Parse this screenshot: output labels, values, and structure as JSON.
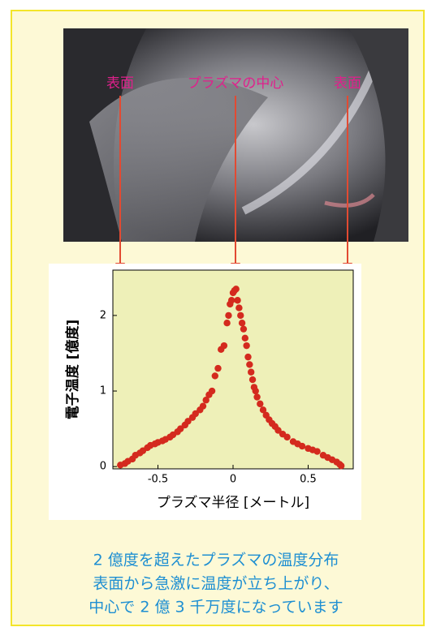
{
  "chart_data": {
    "type": "scatter",
    "annotations": [
      "表面",
      "プラズマの中心",
      "表面"
    ],
    "xlabel": "プラズマ半径 [メートル]",
    "ylabel": "電子温度 [億度]",
    "x": [
      -0.75,
      -0.72,
      -0.7,
      -0.67,
      -0.65,
      -0.62,
      -0.6,
      -0.57,
      -0.55,
      -0.52,
      -0.5,
      -0.47,
      -0.45,
      -0.42,
      -0.4,
      -0.37,
      -0.35,
      -0.32,
      -0.3,
      -0.27,
      -0.25,
      -0.22,
      -0.2,
      -0.18,
      -0.16,
      -0.14,
      -0.12,
      -0.1,
      -0.08,
      -0.06,
      -0.04,
      -0.03,
      -0.02,
      -0.01,
      0,
      0.01,
      0.02,
      0.03,
      0.04,
      0.05,
      0.06,
      0.07,
      0.08,
      0.09,
      0.1,
      0.11,
      0.12,
      0.13,
      0.14,
      0.15,
      0.16,
      0.18,
      0.2,
      0.22,
      0.24,
      0.26,
      0.28,
      0.3,
      0.33,
      0.36,
      0.4,
      0.43,
      0.46,
      0.5,
      0.53,
      0.56,
      0.6,
      0.63,
      0.66,
      0.69,
      0.71,
      0.72
    ],
    "values": [
      0.02,
      0.04,
      0.07,
      0.1,
      0.15,
      0.18,
      0.21,
      0.25,
      0.28,
      0.3,
      0.32,
      0.34,
      0.36,
      0.39,
      0.42,
      0.46,
      0.5,
      0.55,
      0.6,
      0.65,
      0.7,
      0.75,
      0.8,
      0.88,
      0.95,
      1.0,
      1.2,
      1.3,
      1.55,
      1.6,
      1.9,
      2.0,
      2.15,
      2.2,
      2.3,
      2.33,
      2.35,
      2.2,
      2.1,
      2.0,
      1.9,
      1.82,
      1.7,
      1.6,
      1.45,
      1.35,
      1.25,
      1.15,
      1.05,
      1.0,
      0.92,
      0.83,
      0.75,
      0.68,
      0.62,
      0.57,
      0.53,
      0.48,
      0.43,
      0.39,
      0.33,
      0.3,
      0.27,
      0.24,
      0.22,
      0.2,
      0.15,
      0.12,
      0.09,
      0.06,
      0.03,
      0.01
    ],
    "color": "#d42a1e",
    "plot_bg": "#eef0b8",
    "xlim": [
      -0.8,
      0.8
    ],
    "ylim": [
      -0.03,
      2.6
    ],
    "xticks": [
      -0.5,
      0,
      0.5
    ],
    "yticks": [
      0,
      1,
      2
    ],
    "caption": [
      "2 億度を超えたプラズマの温度分布",
      "表面から急激に温度が立ち上がり、",
      "中心で 2 億 3 千万度になっています"
    ]
  }
}
